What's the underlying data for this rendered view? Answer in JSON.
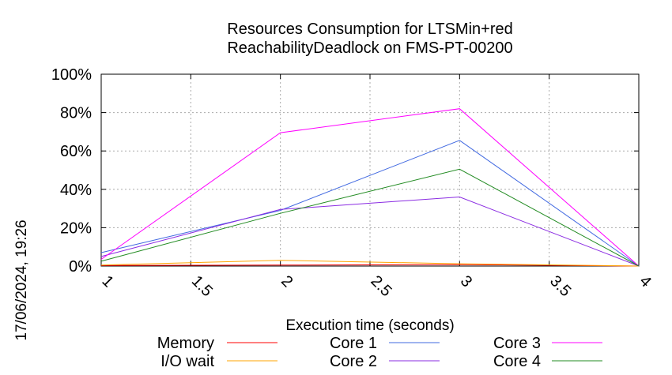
{
  "chart_data": {
    "type": "line",
    "title": "Resources Consumption for LTSMin+red",
    "subtitle": "ReachabilityDeadlock on FMS-PT-00200",
    "xlabel": "Execution time (seconds)",
    "ylabel": "",
    "xlim": [
      1,
      4
    ],
    "ylim": [
      0,
      100
    ],
    "x_ticks": [
      "1",
      "1.5",
      "2",
      "2.5",
      "3",
      "3.5",
      "4"
    ],
    "y_ticks": [
      "0%",
      "20%",
      "40%",
      "60%",
      "80%",
      "100%"
    ],
    "grid": true,
    "legend_position": "bottom",
    "timestamp": "17/06/2024, 19:26",
    "series": [
      {
        "name": "Memory",
        "color": "#ff0000",
        "x": [
          1,
          2,
          3,
          4
        ],
        "y": [
          0.3,
          0.5,
          0.8,
          0
        ]
      },
      {
        "name": "I/O wait",
        "color": "#ffa500",
        "x": [
          1,
          2,
          3,
          4
        ],
        "y": [
          0.5,
          3,
          1.2,
          0
        ]
      },
      {
        "name": "Core 1",
        "color": "#4169e1",
        "x": [
          1,
          2,
          3,
          4
        ],
        "y": [
          7,
          29,
          65.5,
          0
        ]
      },
      {
        "name": "Core 2",
        "color": "#8a2be2",
        "x": [
          1,
          2,
          3,
          4
        ],
        "y": [
          5,
          29.5,
          36,
          0
        ]
      },
      {
        "name": "Core 3",
        "color": "#ff00ff",
        "x": [
          1,
          2,
          3,
          4
        ],
        "y": [
          3.5,
          69.5,
          82,
          0
        ]
      },
      {
        "name": "Core 4",
        "color": "#228b22",
        "x": [
          1,
          2,
          3,
          4
        ],
        "y": [
          2.5,
          27.5,
          50.5,
          0
        ]
      }
    ]
  }
}
